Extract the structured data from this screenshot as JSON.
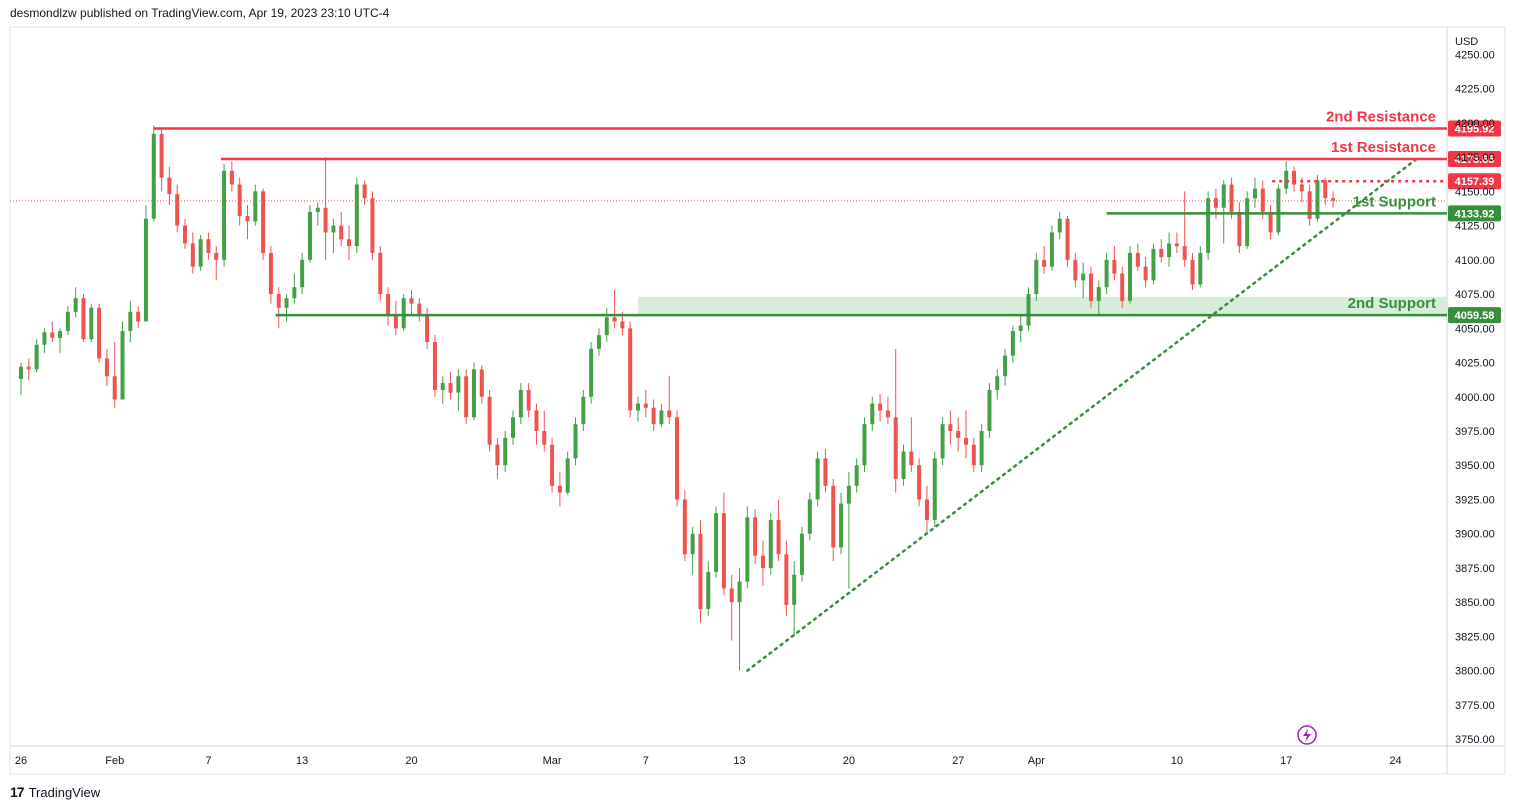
{
  "header": {
    "text": "desmondlzw published on TradingView.com, Apr 19, 2023 23:10 UTC-4"
  },
  "footer": {
    "brand": "TradingView",
    "logo_glyph": "17"
  },
  "colors": {
    "resistance": "#f23645",
    "support": "#388e3c",
    "up_candle": "#43a047",
    "down_candle": "#ef5350",
    "zone_fill": "#c8e6c9",
    "trendline": "#388e3c",
    "flash_icon": "#9c27b0"
  },
  "chart_data": {
    "type": "candlestick",
    "currency": "USD",
    "ylim": [
      3745,
      4270
    ],
    "y_ticks": [
      4250,
      4225,
      4200,
      4175,
      4150,
      4125,
      4100,
      4075,
      4050,
      4025,
      4000,
      3975,
      3950,
      3925,
      3900,
      3875,
      3850,
      3825,
      3800,
      3775,
      3750
    ],
    "y_tick_labels": [
      "4250.00",
      "4225.00",
      "4200.00",
      "4175.00",
      "4150.00",
      "4125.00",
      "4100.00",
      "4075.00",
      "4050.00",
      "4025.00",
      "4000.00",
      "3975.00",
      "3950.00",
      "3925.00",
      "3900.00",
      "3875.00",
      "3850.00",
      "3825.00",
      "3800.00",
      "3775.00",
      "3750.00"
    ],
    "x_ticks": [
      {
        "label": "26",
        "day": 0
      },
      {
        "label": "Feb",
        "day": 6
      },
      {
        "label": "7",
        "day": 12
      },
      {
        "label": "13",
        "day": 18
      },
      {
        "label": "20",
        "day": 25
      },
      {
        "label": "Mar",
        "day": 34
      },
      {
        "label": "7",
        "day": 40
      },
      {
        "label": "13",
        "day": 46
      },
      {
        "label": "20",
        "day": 53
      },
      {
        "label": "27",
        "day": 60
      },
      {
        "label": "Apr",
        "day": 65
      },
      {
        "label": "10",
        "day": 74
      },
      {
        "label": "17",
        "day": 81
      },
      {
        "label": "24",
        "day": 88
      }
    ],
    "levels": [
      {
        "name": "2nd Resistance",
        "value": 4195.92,
        "label": "4195.92",
        "kind": "resistance",
        "from_day": 8.5
      },
      {
        "name": "1st Resistance",
        "value": 4173.65,
        "label": "4173.65",
        "kind": "resistance",
        "from_day": 12.8
      },
      {
        "name": "",
        "value": 4157.39,
        "label": "4157.39",
        "kind": "resistance-dotted",
        "from_day": 80.1
      },
      {
        "name": "1st Support",
        "value": 4133.92,
        "label": "4133.92",
        "kind": "support",
        "from_day": 69.5
      },
      {
        "name": "2nd Support",
        "value": 4059.58,
        "label": "4059.58",
        "kind": "support",
        "from_day": 16.3
      }
    ],
    "support_zone": {
      "from_day": 39.5,
      "low": 4059.58,
      "high": 4073
    },
    "trendline": {
      "start": {
        "day": 46.5,
        "price": 3800
      },
      "end": {
        "day": 89.5,
        "price": 4175
      }
    },
    "current_price": 4143,
    "candles": [
      [
        0.0,
        4013,
        4025,
        4001,
        4022
      ],
      [
        0.5,
        4022,
        4028,
        4012,
        4020
      ],
      [
        1.0,
        4020,
        4042,
        4018,
        4038
      ],
      [
        1.5,
        4038,
        4050,
        4032,
        4047
      ],
      [
        2.0,
        4047,
        4055,
        4040,
        4043
      ],
      [
        2.5,
        4043,
        4050,
        4032,
        4048
      ],
      [
        3.0,
        4048,
        4066,
        4045,
        4062
      ],
      [
        3.5,
        4062,
        4080,
        4058,
        4072
      ],
      [
        4.0,
        4072,
        4075,
        4040,
        4042
      ],
      [
        4.5,
        4042,
        4068,
        4040,
        4065
      ],
      [
        5.0,
        4065,
        4068,
        4025,
        4028
      ],
      [
        5.5,
        4028,
        4035,
        4008,
        4015
      ],
      [
        6.0,
        4015,
        4040,
        3992,
        3998
      ],
      [
        6.5,
        3998,
        4055,
        3998,
        4048
      ],
      [
        7.0,
        4048,
        4070,
        4040,
        4062
      ],
      [
        7.5,
        4062,
        4066,
        4050,
        4055
      ],
      [
        8.0,
        4055,
        4140,
        4055,
        4130
      ],
      [
        8.5,
        4130,
        4198,
        4128,
        4192
      ],
      [
        9.0,
        4192,
        4195,
        4150,
        4160
      ],
      [
        9.5,
        4160,
        4168,
        4140,
        4148
      ],
      [
        10.0,
        4148,
        4155,
        4120,
        4125
      ],
      [
        10.5,
        4125,
        4130,
        4108,
        4112
      ],
      [
        11.0,
        4112,
        4120,
        4090,
        4095
      ],
      [
        11.5,
        4095,
        4118,
        4092,
        4115
      ],
      [
        12.0,
        4115,
        4120,
        4100,
        4105
      ],
      [
        12.5,
        4105,
        4110,
        4085,
        4100
      ],
      [
        13.0,
        4100,
        4170,
        4095,
        4165
      ],
      [
        13.5,
        4165,
        4172,
        4150,
        4155
      ],
      [
        14.0,
        4155,
        4160,
        4125,
        4132
      ],
      [
        14.5,
        4132,
        4140,
        4115,
        4128
      ],
      [
        15.0,
        4128,
        4155,
        4125,
        4150
      ],
      [
        15.5,
        4150,
        4152,
        4100,
        4105
      ],
      [
        16.0,
        4105,
        4110,
        4068,
        4075
      ],
      [
        16.5,
        4075,
        4080,
        4050,
        4065
      ],
      [
        17.0,
        4065,
        4075,
        4055,
        4072
      ],
      [
        17.5,
        4072,
        4090,
        4068,
        4080
      ],
      [
        18.0,
        4080,
        4105,
        4075,
        4100
      ],
      [
        18.5,
        4100,
        4140,
        4098,
        4135
      ],
      [
        19.0,
        4135,
        4142,
        4125,
        4138
      ],
      [
        19.5,
        4138,
        4175,
        4100,
        4120
      ],
      [
        20.0,
        4120,
        4130,
        4105,
        4125
      ],
      [
        20.5,
        4125,
        4135,
        4110,
        4115
      ],
      [
        21.0,
        4115,
        4125,
        4100,
        4110
      ],
      [
        21.5,
        4110,
        4160,
        4105,
        4155
      ],
      [
        22.0,
        4155,
        4158,
        4140,
        4145
      ],
      [
        22.5,
        4145,
        4150,
        4100,
        4105
      ],
      [
        23.0,
        4105,
        4110,
        4070,
        4075
      ],
      [
        23.5,
        4075,
        4080,
        4052,
        4060
      ],
      [
        24.0,
        4060,
        4070,
        4045,
        4050
      ],
      [
        24.5,
        4050,
        4075,
        4048,
        4072
      ],
      [
        25.0,
        4072,
        4078,
        4060,
        4068
      ],
      [
        25.5,
        4068,
        4072,
        4055,
        4060
      ],
      [
        26.0,
        4060,
        4065,
        4035,
        4040
      ],
      [
        26.5,
        4040,
        4045,
        4000,
        4005
      ],
      [
        27.0,
        4005,
        4015,
        3995,
        4010
      ],
      [
        27.5,
        4010,
        4018,
        3998,
        4003
      ],
      [
        28.0,
        4003,
        4020,
        3990,
        4015
      ],
      [
        28.5,
        4015,
        4020,
        3980,
        3985
      ],
      [
        29.0,
        3985,
        4025,
        3983,
        4020
      ],
      [
        29.5,
        4020,
        4023,
        3995,
        4000
      ],
      [
        30.0,
        4000,
        4005,
        3960,
        3965
      ],
      [
        30.5,
        3965,
        3970,
        3940,
        3950
      ],
      [
        31.0,
        3950,
        3975,
        3945,
        3970
      ],
      [
        31.5,
        3970,
        3990,
        3965,
        3985
      ],
      [
        32.0,
        3985,
        4010,
        3980,
        4005
      ],
      [
        32.5,
        4005,
        4010,
        3985,
        3990
      ],
      [
        33.0,
        3990,
        3995,
        3965,
        3975
      ],
      [
        33.5,
        3975,
        3990,
        3960,
        3965
      ],
      [
        34.0,
        3965,
        3970,
        3930,
        3935
      ],
      [
        34.5,
        3935,
        3945,
        3920,
        3930
      ],
      [
        35.0,
        3930,
        3960,
        3928,
        3955
      ],
      [
        35.5,
        3955,
        3985,
        3950,
        3980
      ],
      [
        36.0,
        3980,
        4005,
        3975,
        4000
      ],
      [
        36.5,
        4000,
        4040,
        3995,
        4035
      ],
      [
        37.0,
        4035,
        4050,
        4030,
        4045
      ],
      [
        37.5,
        4045,
        4065,
        4040,
        4058
      ],
      [
        38.0,
        4058,
        4078,
        4050,
        4055
      ],
      [
        38.5,
        4055,
        4062,
        4045,
        4050
      ],
      [
        39.0,
        4050,
        4055,
        3985,
        3990
      ],
      [
        39.5,
        3990,
        4000,
        3982,
        3995
      ],
      [
        40.0,
        3995,
        4005,
        3985,
        3992
      ],
      [
        40.5,
        3992,
        3998,
        3975,
        3980
      ],
      [
        41.0,
        3980,
        3995,
        3978,
        3990
      ],
      [
        41.5,
        3990,
        4015,
        3980,
        3985
      ],
      [
        42.0,
        3985,
        3990,
        3920,
        3925
      ],
      [
        42.5,
        3925,
        3932,
        3880,
        3885
      ],
      [
        43.0,
        3885,
        3905,
        3870,
        3900
      ],
      [
        43.5,
        3900,
        3910,
        3835,
        3845
      ],
      [
        44.0,
        3845,
        3880,
        3840,
        3872
      ],
      [
        44.5,
        3872,
        3920,
        3868,
        3915
      ],
      [
        45.0,
        3915,
        3930,
        3855,
        3860
      ],
      [
        45.5,
        3860,
        3870,
        3822,
        3850
      ],
      [
        46.0,
        3850,
        3875,
        3800,
        3865
      ],
      [
        46.5,
        3865,
        3920,
        3860,
        3912
      ],
      [
        47.0,
        3912,
        3918,
        3878,
        3884
      ],
      [
        47.5,
        3884,
        3895,
        3862,
        3875
      ],
      [
        48.0,
        3875,
        3915,
        3870,
        3910
      ],
      [
        48.5,
        3910,
        3925,
        3880,
        3885
      ],
      [
        49.0,
        3885,
        3895,
        3840,
        3848
      ],
      [
        49.5,
        3848,
        3880,
        3825,
        3870
      ],
      [
        50.0,
        3870,
        3905,
        3865,
        3900
      ],
      [
        50.5,
        3900,
        3930,
        3895,
        3925
      ],
      [
        51.0,
        3925,
        3960,
        3920,
        3955
      ],
      [
        51.5,
        3955,
        3962,
        3930,
        3935
      ],
      [
        52.0,
        3935,
        3940,
        3880,
        3890
      ],
      [
        52.5,
        3890,
        3930,
        3885,
        3922
      ],
      [
        53.0,
        3922,
        3945,
        3860,
        3935
      ],
      [
        53.5,
        3935,
        3955,
        3930,
        3950
      ],
      [
        54.0,
        3950,
        3985,
        3945,
        3980
      ],
      [
        54.5,
        3980,
        4000,
        3975,
        3995
      ],
      [
        55.0,
        3995,
        4002,
        3982,
        3990
      ],
      [
        55.5,
        3990,
        4000,
        3980,
        3985
      ],
      [
        56.0,
        3985,
        4035,
        3930,
        3940
      ],
      [
        56.5,
        3940,
        3965,
        3935,
        3960
      ],
      [
        57.0,
        3960,
        3985,
        3945,
        3950
      ],
      [
        57.5,
        3950,
        3955,
        3920,
        3925
      ],
      [
        58.0,
        3925,
        3935,
        3900,
        3910
      ],
      [
        58.5,
        3910,
        3960,
        3905,
        3955
      ],
      [
        59.0,
        3955,
        3985,
        3950,
        3980
      ],
      [
        59.5,
        3980,
        3990,
        3965,
        3975
      ],
      [
        60.0,
        3975,
        3985,
        3960,
        3970
      ],
      [
        60.5,
        3970,
        3990,
        3955,
        3965
      ],
      [
        61.0,
        3965,
        3970,
        3945,
        3950
      ],
      [
        61.5,
        3950,
        3980,
        3945,
        3975
      ],
      [
        62.0,
        3975,
        4010,
        3970,
        4005
      ],
      [
        62.5,
        4005,
        4020,
        3998,
        4015
      ],
      [
        63.0,
        4015,
        4035,
        4008,
        4030
      ],
      [
        63.5,
        4030,
        4052,
        4025,
        4048
      ],
      [
        64.0,
        4048,
        4060,
        4040,
        4052
      ],
      [
        64.5,
        4052,
        4080,
        4048,
        4075
      ],
      [
        65.0,
        4075,
        4105,
        4070,
        4100
      ],
      [
        65.5,
        4100,
        4110,
        4090,
        4095
      ],
      [
        66.0,
        4095,
        4125,
        4092,
        4120
      ],
      [
        66.5,
        4120,
        4135,
        4115,
        4130
      ],
      [
        67.0,
        4130,
        4132,
        4095,
        4100
      ],
      [
        67.5,
        4100,
        4105,
        4080,
        4085
      ],
      [
        68.0,
        4085,
        4098,
        4072,
        4090
      ],
      [
        68.5,
        4090,
        4095,
        4065,
        4070
      ],
      [
        69.0,
        4070,
        4085,
        4060,
        4080
      ],
      [
        69.5,
        4080,
        4105,
        4075,
        4100
      ],
      [
        70.0,
        4100,
        4110,
        4085,
        4090
      ],
      [
        70.5,
        4090,
        4095,
        4065,
        4070
      ],
      [
        71.0,
        4070,
        4110,
        4068,
        4105
      ],
      [
        71.5,
        4105,
        4112,
        4092,
        4095
      ],
      [
        72.0,
        4095,
        4102,
        4080,
        4085
      ],
      [
        72.5,
        4085,
        4112,
        4082,
        4108
      ],
      [
        73.0,
        4108,
        4115,
        4098,
        4102
      ],
      [
        73.5,
        4102,
        4120,
        4095,
        4112
      ],
      [
        74.0,
        4112,
        4120,
        4105,
        4110
      ],
      [
        74.5,
        4110,
        4150,
        4095,
        4100
      ],
      [
        75.0,
        4100,
        4105,
        4078,
        4082
      ],
      [
        75.5,
        4082,
        4110,
        4080,
        4105
      ],
      [
        76.0,
        4105,
        4150,
        4100,
        4145
      ],
      [
        76.5,
        4145,
        4152,
        4130,
        4138
      ],
      [
        77.0,
        4138,
        4158,
        4112,
        4155
      ],
      [
        77.5,
        4155,
        4160,
        4130,
        4135
      ],
      [
        78.0,
        4135,
        4142,
        4105,
        4110
      ],
      [
        78.5,
        4110,
        4150,
        4108,
        4145
      ],
      [
        79.0,
        4145,
        4160,
        4138,
        4152
      ],
      [
        79.5,
        4152,
        4158,
        4130,
        4135
      ],
      [
        80.0,
        4135,
        4140,
        4115,
        4120
      ],
      [
        80.5,
        4120,
        4155,
        4118,
        4152
      ],
      [
        81.0,
        4152,
        4172,
        4148,
        4165
      ],
      [
        81.5,
        4165,
        4168,
        4150,
        4155
      ],
      [
        82.0,
        4155,
        4160,
        4142,
        4150
      ],
      [
        82.5,
        4150,
        4155,
        4125,
        4130
      ],
      [
        83.0,
        4130,
        4162,
        4128,
        4158
      ],
      [
        83.5,
        4158,
        4160,
        4140,
        4145
      ],
      [
        84.0,
        4145,
        4150,
        4138,
        4143
      ]
    ]
  }
}
